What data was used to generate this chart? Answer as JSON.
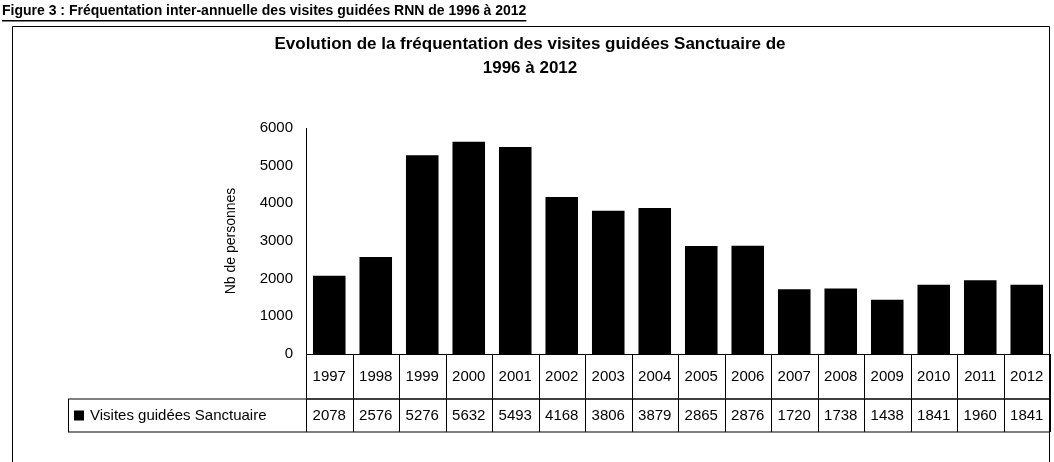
{
  "chart_data": {
    "type": "bar",
    "title": "Evolution de la fréquentation des visites guidées Sanctuaire de 1996 à 2012",
    "ylabel": "Nb de personnes",
    "annotations": [
      "Figure 3 : Fréquentation inter-annuelle des visites guidées RNN de 1996 à 2012"
    ],
    "categories": [
      "1997",
      "1998",
      "1999",
      "2000",
      "2001",
      "2002",
      "2003",
      "2004",
      "2005",
      "2006",
      "2007",
      "2008",
      "2009",
      "2010",
      "2011",
      "2012"
    ],
    "series": [
      {
        "name": "Visites guidées Sanctuaire",
        "color": "#000000",
        "values": [
          2078,
          2576,
          5276,
          5632,
          5493,
          4168,
          3806,
          3879,
          2865,
          2876,
          1720,
          1738,
          1438,
          1841,
          1960,
          1841
        ]
      }
    ],
    "ylim": [
      0,
      6000
    ],
    "yticks": [
      0,
      1000,
      2000,
      3000,
      4000,
      5000,
      6000
    ],
    "data_labels": true
  }
}
